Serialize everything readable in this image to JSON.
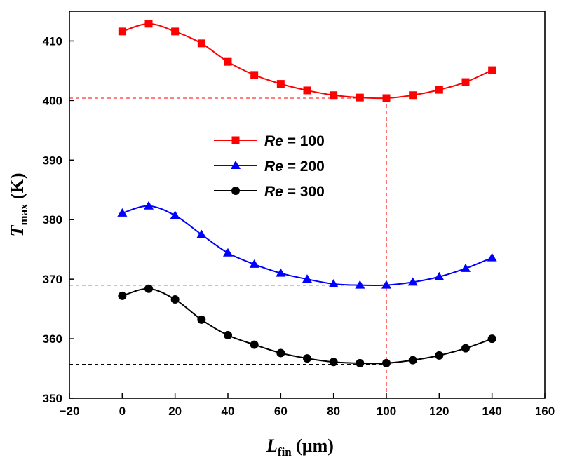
{
  "chart_data": {
    "type": "line",
    "title": "",
    "xlabel": {
      "symbol": "L",
      "subscript": "fin",
      "unit": "(μm)"
    },
    "ylabel": {
      "symbol": "T",
      "subscript": "max",
      "unit": "(K)"
    },
    "xlim": [
      -20,
      160
    ],
    "ylim": [
      350,
      415
    ],
    "xticks": [
      -20,
      0,
      20,
      40,
      60,
      80,
      100,
      120,
      140,
      160
    ],
    "yticks": [
      350,
      360,
      370,
      380,
      390,
      400,
      410
    ],
    "xtick_labels": [
      "−20",
      "0",
      "20",
      "40",
      "60",
      "80",
      "100",
      "120",
      "140",
      "160"
    ],
    "ytick_labels": [
      "350",
      "360",
      "370",
      "380",
      "390",
      "400",
      "410"
    ],
    "legend_position": "center",
    "x": [
      0,
      10,
      20,
      30,
      40,
      50,
      60,
      70,
      80,
      90,
      100,
      110,
      120,
      130,
      140
    ],
    "series": [
      {
        "name": "Re = 100",
        "name_italic": "Re",
        "name_rest": " = 100",
        "color": "#ff0000",
        "marker": "square",
        "values": [
          411.6,
          412.9,
          411.6,
          409.6,
          406.5,
          404.3,
          402.8,
          401.7,
          400.9,
          400.5,
          400.4,
          400.9,
          401.8,
          403.1,
          405.1
        ]
      },
      {
        "name": "Re = 200",
        "name_italic": "Re",
        "name_rest": " = 200",
        "color": "#0000ff",
        "marker": "triangle",
        "values": [
          381.1,
          382.3,
          380.7,
          377.5,
          374.4,
          372.5,
          371.0,
          370.0,
          369.2,
          369.0,
          369.0,
          369.5,
          370.4,
          371.8,
          373.6
        ]
      },
      {
        "name": "Re = 300",
        "name_italic": "Re",
        "name_rest": " = 300",
        "color": "#000000",
        "marker": "circle",
        "values": [
          367.2,
          368.4,
          366.6,
          363.2,
          360.6,
          359.0,
          357.6,
          356.7,
          356.1,
          355.9,
          355.9,
          356.4,
          357.2,
          358.4,
          360.0
        ]
      }
    ],
    "reference_lines": [
      {
        "orientation": "horizontal",
        "value": 400.4,
        "color": "#ff0000",
        "x_to": 100
      },
      {
        "orientation": "horizontal",
        "value": 369.0,
        "color": "#0000ff",
        "x_to": 100
      },
      {
        "orientation": "horizontal",
        "value": 355.7,
        "color": "#000000",
        "x_to": 100
      },
      {
        "orientation": "vertical",
        "value": 100,
        "color": "#ff0000",
        "y_to": 400.4
      }
    ]
  }
}
